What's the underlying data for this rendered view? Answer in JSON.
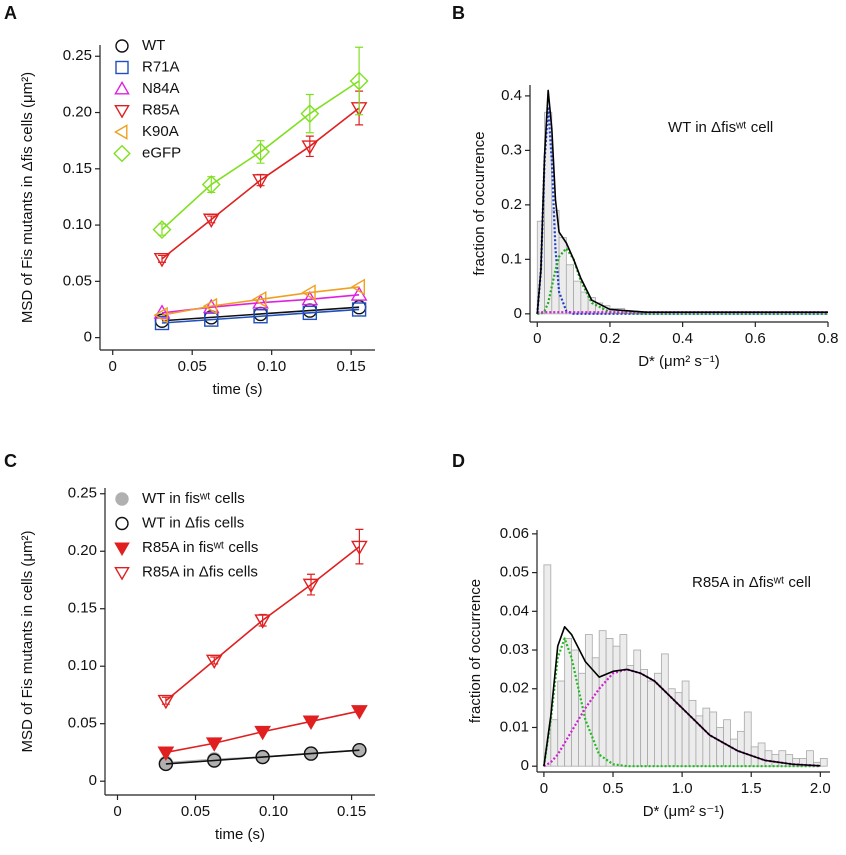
{
  "chart_data": [
    {
      "type": "line",
      "panel_label": "A",
      "xlabel": "time (s)",
      "ylabel": "MSD of Fis mutants in Δfis cells (μm²)",
      "x": [
        0.031,
        0.062,
        0.093,
        0.124,
        0.155
      ],
      "xlim": [
        -0.008,
        0.165
      ],
      "xticks": [
        0,
        0.05,
        {
          "value": 0.1,
          "label": "0.10"
        },
        0.15
      ],
      "ylim": [
        -0.011,
        0.26
      ],
      "yticks": [
        0,
        0.05,
        {
          "value": 0.1,
          "label": "0.10"
        },
        0.15,
        {
          "value": 0.2,
          "label": "0.20"
        },
        0.25
      ],
      "series": [
        {
          "name": "WT",
          "color": "#111111",
          "marker": "circle",
          "values": [
            0.015,
            0.018,
            0.021,
            0.024,
            0.027
          ]
        },
        {
          "name": "R71A",
          "color": "#1f4fbf",
          "marker": "square",
          "values": [
            0.013,
            0.016,
            0.019,
            0.022,
            0.025
          ]
        },
        {
          "name": "N84A",
          "color": "#e020e0",
          "marker": "triangle-up",
          "values": [
            0.022,
            0.027,
            0.031,
            0.034,
            0.038
          ]
        },
        {
          "name": "R85A",
          "color": "#e02020",
          "marker": "triangle-down",
          "values": [
            0.07,
            0.105,
            0.14,
            0.17,
            0.204
          ],
          "errors": [
            0.003,
            0.003,
            0.005,
            0.009,
            0.015
          ]
        },
        {
          "name": "K90A",
          "color": "#f0a020",
          "marker": "triangle-left",
          "values": [
            0.02,
            0.028,
            0.034,
            0.04,
            0.045
          ]
        },
        {
          "name": "eGFP",
          "color": "#80e020",
          "marker": "diamond",
          "values": [
            0.096,
            0.136,
            0.165,
            0.199,
            0.228
          ],
          "errors": [
            0.005,
            0.007,
            0.01,
            0.017,
            0.03
          ]
        }
      ]
    },
    {
      "type": "histogram",
      "panel_label": "B",
      "xlabel": "D* (μm² s⁻¹)",
      "ylabel": "fraction of occurrence",
      "annotation": "WT in Δfisʷᵗ cell",
      "xlim": [
        -0.02,
        0.8
      ],
      "xticks": [
        0,
        0.2,
        0.4,
        0.6,
        0.8
      ],
      "ylim": [
        -0.015,
        0.42
      ],
      "yticks": [
        0,
        0.1,
        0.2,
        0.3,
        0.4
      ],
      "bins": [
        0,
        0.02,
        0.04,
        0.06,
        0.08,
        0.1,
        0.12,
        0.14,
        0.16,
        0.18,
        0.2,
        0.22,
        0.24,
        0.26,
        0.28,
        0.3
      ],
      "counts": [
        0.17,
        0.37,
        0.19,
        0.14,
        0.09,
        0.06,
        0.04,
        0.03,
        0.02,
        0.015,
        0.01,
        0.01,
        0.005,
        0.003,
        0.002
      ],
      "curve_x": [
        0,
        0.01,
        0.02,
        0.03,
        0.04,
        0.05,
        0.06,
        0.08,
        0.1,
        0.12,
        0.15,
        0.2,
        0.3,
        0.5,
        0.8
      ],
      "series": [
        {
          "color": "#1f3fd0",
          "style": "dotted",
          "values": [
            0,
            0.08,
            0.28,
            0.38,
            0.28,
            0.12,
            0.04,
            0.005,
            0,
            0,
            0,
            0,
            0,
            0,
            0
          ]
        },
        {
          "color": "#22aa22",
          "style": "dotted",
          "values": [
            0,
            0,
            0.005,
            0.02,
            0.05,
            0.08,
            0.105,
            0.12,
            0.1,
            0.06,
            0.02,
            0.003,
            0,
            0,
            0
          ]
        },
        {
          "color": "#d020d0",
          "style": "dotted",
          "values": [
            0.003,
            0.003,
            0.003,
            0.003,
            0.003,
            0.003,
            0.003,
            0.003,
            0.003,
            0.003,
            0.003,
            0.003,
            0.003,
            0.003,
            0.003
          ]
        },
        {
          "color": "#000000",
          "style": "solid",
          "values": [
            0,
            0.08,
            0.29,
            0.41,
            0.34,
            0.21,
            0.15,
            0.13,
            0.1,
            0.065,
            0.025,
            0.008,
            0.003,
            0.003,
            0.003
          ]
        }
      ]
    },
    {
      "type": "line",
      "panel_label": "C",
      "xlabel": "time (s)",
      "ylabel": "MSD of Fis mutants in cells (μm²)",
      "x": [
        0.031,
        0.062,
        0.093,
        0.124,
        0.155
      ],
      "xlim": [
        -0.008,
        0.165
      ],
      "xticks": [
        0,
        0.05,
        {
          "value": 0.1,
          "label": "0.10"
        },
        0.15
      ],
      "ylim": [
        -0.012,
        0.255
      ],
      "yticks": [
        0,
        0.05,
        {
          "value": 0.1,
          "label": "0.10"
        },
        0.15,
        {
          "value": 0.2,
          "label": "0.20"
        },
        0.25
      ],
      "series": [
        {
          "name": "WT in fisʷᵗ cells",
          "color": "#b0b0b0",
          "marker": "circle",
          "filled": true,
          "values": [
            0.016,
            0.019,
            0.021,
            0.024,
            0.027
          ]
        },
        {
          "name": "WT in Δfis cells",
          "color": "#111111",
          "marker": "circle",
          "values": [
            0.015,
            0.018,
            0.021,
            0.024,
            0.027
          ]
        },
        {
          "name": "R85A in fisʷᵗ cells",
          "color": "#e02020",
          "marker": "triangle-down",
          "filled": true,
          "values": [
            0.025,
            0.033,
            0.043,
            0.052,
            0.061
          ]
        },
        {
          "name": "R85A in Δfis cells",
          "color": "#e02020",
          "marker": "triangle-down",
          "values": [
            0.07,
            0.105,
            0.14,
            0.171,
            0.204
          ],
          "errors": [
            0.003,
            0.003,
            0.005,
            0.009,
            0.015
          ]
        }
      ]
    },
    {
      "type": "histogram",
      "panel_label": "D",
      "xlabel": "D* (μm² s⁻¹)",
      "ylabel": "fraction of occurrence",
      "annotation": "R85A in Δfisʷᵗ cell",
      "xlim": [
        -0.05,
        2.07
      ],
      "xticks": [
        0,
        0.5,
        {
          "value": 1,
          "label": "1.0"
        },
        1.5,
        {
          "value": 2,
          "label": "2.0"
        }
      ],
      "ylim": [
        -0.0015,
        0.061
      ],
      "yticks": [
        0,
        0.01,
        0.02,
        0.03,
        0.04,
        0.05,
        0.06
      ],
      "bins": [
        0,
        0.05,
        0.1,
        0.15,
        0.2,
        0.25,
        0.3,
        0.35,
        0.4,
        0.45,
        0.5,
        0.55,
        0.6,
        0.65,
        0.7,
        0.75,
        0.8,
        0.85,
        0.9,
        0.95,
        1,
        1.05,
        1.1,
        1.15,
        1.2,
        1.25,
        1.3,
        1.35,
        1.4,
        1.45,
        1.5,
        1.55,
        1.6,
        1.65,
        1.7,
        1.75,
        1.8,
        1.85,
        1.9,
        1.95,
        2,
        2.05
      ],
      "counts": [
        0.052,
        0.012,
        0.022,
        0.033,
        0.03,
        0.024,
        0.034,
        0.028,
        0.035,
        0.033,
        0.031,
        0.034,
        0.026,
        0.03,
        0.025,
        0.022,
        0.024,
        0.029,
        0.02,
        0.019,
        0.022,
        0.017,
        0.013,
        0.015,
        0.014,
        0.01,
        0.012,
        0.007,
        0.009,
        0.014,
        0.005,
        0.006,
        0.004,
        0.003,
        0.004,
        0.003,
        0.002,
        0.002,
        0.004,
        0.001,
        0.002
      ],
      "curve_x": [
        0,
        0.05,
        0.1,
        0.15,
        0.2,
        0.3,
        0.4,
        0.5,
        0.6,
        0.7,
        0.8,
        1,
        1.2,
        1.4,
        1.6,
        1.8,
        2
      ],
      "series": [
        {
          "color": "#22bb22",
          "style": "dotted",
          "values": [
            0,
            0.012,
            0.028,
            0.033,
            0.028,
            0.012,
            0.003,
            0.0005,
            0,
            0,
            0,
            0,
            0,
            0,
            0,
            0,
            0
          ]
        },
        {
          "color": "#d020d0",
          "style": "dotted",
          "values": [
            0,
            0.001,
            0.003,
            0.006,
            0.009,
            0.015,
            0.02,
            0.024,
            0.025,
            0.024,
            0.022,
            0.015,
            0.008,
            0.004,
            0.0015,
            0.0005,
            0.0001
          ]
        },
        {
          "color": "#000000",
          "style": "solid",
          "values": [
            0,
            0.013,
            0.031,
            0.036,
            0.034,
            0.027,
            0.023,
            0.0245,
            0.025,
            0.024,
            0.022,
            0.015,
            0.008,
            0.004,
            0.0015,
            0.0005,
            0.0001
          ]
        }
      ]
    }
  ]
}
